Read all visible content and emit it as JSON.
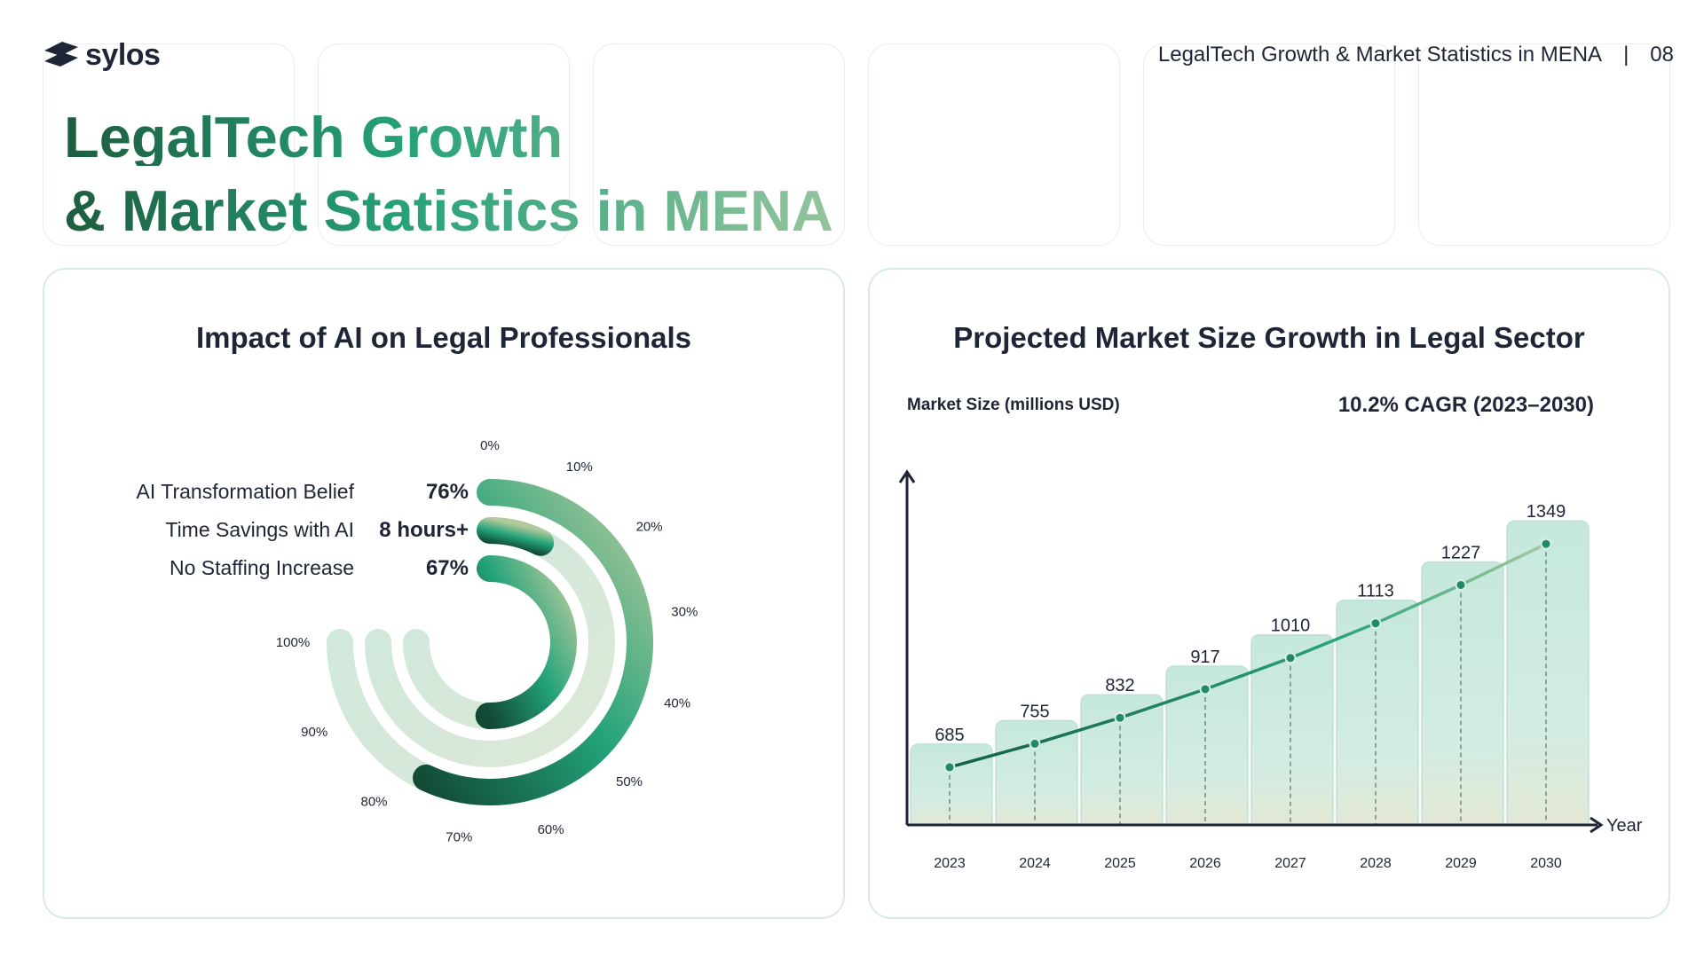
{
  "brand": {
    "name": "sylos"
  },
  "header": {
    "section_title": "LegalTech Growth & Market Statistics in MENA",
    "separator": "|",
    "page_number": "08"
  },
  "title": {
    "line1": "LegalTech Growth",
    "line2": "& Market Statistics in MENA"
  },
  "colors": {
    "dark_green": "#1b5e43",
    "accent_green": "#22a37a",
    "mint": "#cfeae0",
    "ink": "#1e2537"
  },
  "chart_data": [
    {
      "type": "radial-bar",
      "title": "Impact of AI on Legal Professionals",
      "axis_ticks": [
        "0%",
        "10%",
        "20%",
        "30%",
        "40%",
        "50%",
        "60%",
        "70%",
        "80%",
        "90%",
        "100%"
      ],
      "range": [
        0,
        100
      ],
      "series": [
        {
          "name": "AI Transformation Belief",
          "value_label": "76%",
          "value": 76
        },
        {
          "name": "Time Savings with AI",
          "value_label": "8 hours+",
          "value": 10
        },
        {
          "name": "No Staffing Increase",
          "value_label": "67%",
          "value": 67
        }
      ]
    },
    {
      "type": "bar",
      "title": "Projected Market Size Growth in Legal Sector",
      "ylabel": "Market Size (millions USD)",
      "annotation": "10.2% CAGR (2023–2030)",
      "xlabel": "Year",
      "categories": [
        "2023",
        "2024",
        "2025",
        "2026",
        "2027",
        "2028",
        "2029",
        "2030"
      ],
      "values": [
        685,
        755,
        832,
        917,
        1010,
        1113,
        1227,
        1349
      ],
      "overlay": "line",
      "ylim": [
        450,
        1500
      ]
    }
  ]
}
